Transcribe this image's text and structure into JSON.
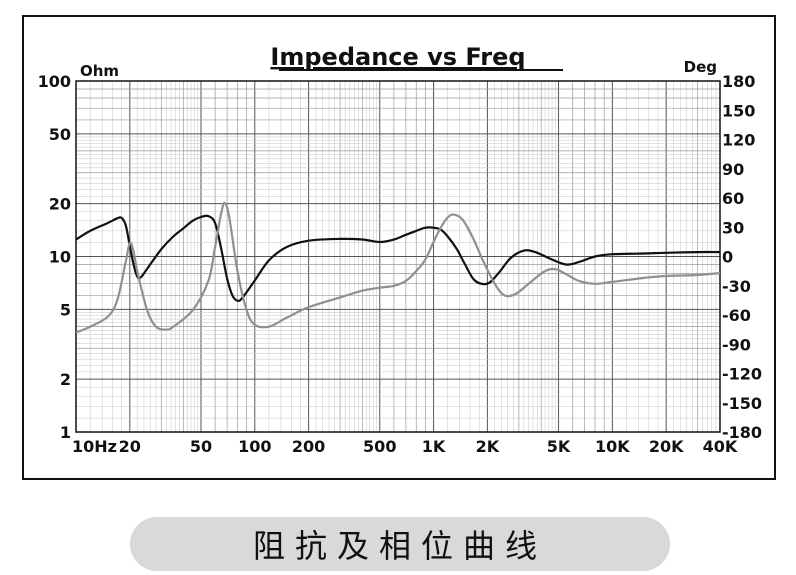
{
  "caption": "阻抗及相位曲线",
  "chart_data": {
    "type": "line",
    "title": "Impedance vs Freq",
    "y_left_unit": "Ohm",
    "y_right_unit": "Deg",
    "x_scale": "log",
    "y_left_scale": "log",
    "xlim": [
      10,
      40000
    ],
    "ylim_left": [
      1,
      100
    ],
    "ylim_right": [
      -180,
      180
    ],
    "grid": true,
    "x_ticks": [
      {
        "value": 10,
        "label": "10Hz"
      },
      {
        "value": 20,
        "label": "20"
      },
      {
        "value": 50,
        "label": "50"
      },
      {
        "value": 100,
        "label": "100"
      },
      {
        "value": 200,
        "label": "200"
      },
      {
        "value": 500,
        "label": "500"
      },
      {
        "value": 1000,
        "label": "1K"
      },
      {
        "value": 2000,
        "label": "2K"
      },
      {
        "value": 5000,
        "label": "5K"
      },
      {
        "value": 10000,
        "label": "10K"
      },
      {
        "value": 20000,
        "label": "20K"
      },
      {
        "value": 40000,
        "label": "40K"
      }
    ],
    "y_left_ticks": [
      {
        "value": 1,
        "label": "1"
      },
      {
        "value": 2,
        "label": "2"
      },
      {
        "value": 5,
        "label": "5"
      },
      {
        "value": 10,
        "label": "10"
      },
      {
        "value": 20,
        "label": "20"
      },
      {
        "value": 50,
        "label": "50"
      },
      {
        "value": 100,
        "label": "100"
      }
    ],
    "y_right_ticks": [
      {
        "value": 180,
        "label": "180"
      },
      {
        "value": 150,
        "label": "150"
      },
      {
        "value": 120,
        "label": "120"
      },
      {
        "value": 90,
        "label": "90"
      },
      {
        "value": 60,
        "label": "60"
      },
      {
        "value": 30,
        "label": "30"
      },
      {
        "value": 0,
        "label": "0"
      },
      {
        "value": -30,
        "label": "-30"
      },
      {
        "value": -60,
        "label": "-60"
      },
      {
        "value": -90,
        "label": "-90"
      },
      {
        "value": -120,
        "label": "-120"
      },
      {
        "value": -150,
        "label": "-150"
      },
      {
        "value": -180,
        "label": "-180"
      }
    ],
    "series": [
      {
        "color": "#111111",
        "axis": "left",
        "points": [
          [
            10,
            12.5
          ],
          [
            12,
            14
          ],
          [
            15,
            15.5
          ],
          [
            17,
            16.5
          ],
          [
            18,
            16.6
          ],
          [
            19,
            15
          ],
          [
            20,
            11.5
          ],
          [
            21,
            9
          ],
          [
            22,
            7.7
          ],
          [
            23,
            7.6
          ],
          [
            25,
            8.5
          ],
          [
            30,
            11
          ],
          [
            35,
            13
          ],
          [
            40,
            14.5
          ],
          [
            45,
            16
          ],
          [
            50,
            16.8
          ],
          [
            55,
            17
          ],
          [
            60,
            15.5
          ],
          [
            65,
            11
          ],
          [
            70,
            7.5
          ],
          [
            75,
            6
          ],
          [
            80,
            5.6
          ],
          [
            85,
            5.8
          ],
          [
            100,
            7.3
          ],
          [
            120,
            9.5
          ],
          [
            150,
            11.3
          ],
          [
            200,
            12.3
          ],
          [
            300,
            12.6
          ],
          [
            400,
            12.5
          ],
          [
            500,
            12.1
          ],
          [
            600,
            12.5
          ],
          [
            700,
            13.3
          ],
          [
            800,
            14
          ],
          [
            900,
            14.6
          ],
          [
            1000,
            14.6
          ],
          [
            1100,
            14.2
          ],
          [
            1200,
            13
          ],
          [
            1350,
            11
          ],
          [
            1500,
            9
          ],
          [
            1700,
            7.3
          ],
          [
            2000,
            7
          ],
          [
            2300,
            8
          ],
          [
            2700,
            9.8
          ],
          [
            3200,
            10.8
          ],
          [
            3700,
            10.6
          ],
          [
            4500,
            9.7
          ],
          [
            5500,
            9
          ],
          [
            6500,
            9.3
          ],
          [
            8000,
            10
          ],
          [
            10000,
            10.3
          ],
          [
            15000,
            10.4
          ],
          [
            20000,
            10.5
          ],
          [
            30000,
            10.6
          ],
          [
            40000,
            10.6
          ]
        ]
      },
      {
        "color": "#909090",
        "axis": "right",
        "points": [
          [
            10,
            -78
          ],
          [
            12,
            -72
          ],
          [
            15,
            -62
          ],
          [
            17,
            -45
          ],
          [
            19,
            -5
          ],
          [
            20,
            14
          ],
          [
            21,
            5
          ],
          [
            22,
            -15
          ],
          [
            25,
            -55
          ],
          [
            28,
            -72
          ],
          [
            32,
            -75
          ],
          [
            35,
            -72
          ],
          [
            45,
            -55
          ],
          [
            55,
            -25
          ],
          [
            60,
            10
          ],
          [
            65,
            45
          ],
          [
            68,
            55
          ],
          [
            72,
            40
          ],
          [
            80,
            -15
          ],
          [
            90,
            -55
          ],
          [
            100,
            -70
          ],
          [
            120,
            -72
          ],
          [
            150,
            -63
          ],
          [
            200,
            -52
          ],
          [
            300,
            -42
          ],
          [
            400,
            -35
          ],
          [
            500,
            -32
          ],
          [
            600,
            -30
          ],
          [
            700,
            -25
          ],
          [
            800,
            -15
          ],
          [
            900,
            -3
          ],
          [
            1000,
            15
          ],
          [
            1100,
            30
          ],
          [
            1200,
            40
          ],
          [
            1300,
            43
          ],
          [
            1450,
            38
          ],
          [
            1650,
            20
          ],
          [
            1900,
            -5
          ],
          [
            2200,
            -28
          ],
          [
            2500,
            -40
          ],
          [
            2900,
            -38
          ],
          [
            3500,
            -26
          ],
          [
            4200,
            -15
          ],
          [
            4800,
            -13
          ],
          [
            5500,
            -18
          ],
          [
            6500,
            -25
          ],
          [
            8000,
            -28
          ],
          [
            10000,
            -26
          ],
          [
            15000,
            -22
          ],
          [
            20000,
            -20
          ],
          [
            30000,
            -19
          ],
          [
            40000,
            -17
          ]
        ]
      }
    ]
  }
}
